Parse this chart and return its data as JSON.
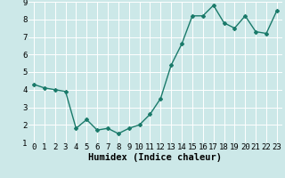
{
  "x": [
    0,
    1,
    2,
    3,
    4,
    5,
    6,
    7,
    8,
    9,
    10,
    11,
    12,
    13,
    14,
    15,
    16,
    17,
    18,
    19,
    20,
    21,
    22,
    23
  ],
  "y": [
    4.3,
    4.1,
    4.0,
    3.9,
    1.8,
    2.3,
    1.7,
    1.8,
    1.5,
    1.8,
    2.0,
    2.6,
    3.5,
    5.4,
    6.6,
    8.2,
    8.2,
    8.8,
    7.8,
    7.5,
    8.2,
    7.3,
    7.2,
    8.5
  ],
  "line_color": "#1a7a6a",
  "marker": "D",
  "marker_size": 2.0,
  "line_width": 1.0,
  "xlabel": "Humidex (Indice chaleur)",
  "xlim": [
    -0.5,
    23.5
  ],
  "ylim": [
    1.0,
    9.0
  ],
  "xticks": [
    0,
    1,
    2,
    3,
    4,
    5,
    6,
    7,
    8,
    9,
    10,
    11,
    12,
    13,
    14,
    15,
    16,
    17,
    18,
    19,
    20,
    21,
    22,
    23
  ],
  "yticks": [
    1,
    2,
    3,
    4,
    5,
    6,
    7,
    8,
    9
  ],
  "bg_color": "#cce8e8",
  "grid_color": "#ffffff",
  "tick_font_size": 6.5,
  "xlabel_font_size": 7.5
}
